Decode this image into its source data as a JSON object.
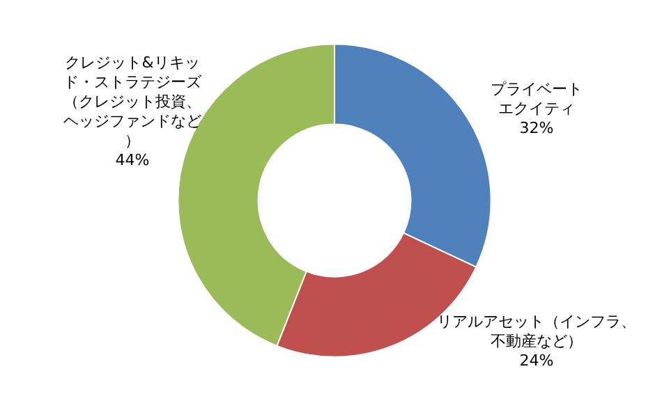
{
  "chart_data": {
    "type": "donut",
    "categories": [
      "プライベートエクイティ",
      "リアルアセット（インフラ、不動産など）",
      "クレジット&リキッド・ストラテジーズ（クレジット投資、ヘッジファンドなど）"
    ],
    "values": [
      32,
      24,
      44
    ],
    "value_labels": [
      "32%",
      "24%",
      "44%"
    ],
    "colors": [
      "#4f81bd",
      "#c0504d",
      "#9bbb59"
    ],
    "legend": false
  }
}
